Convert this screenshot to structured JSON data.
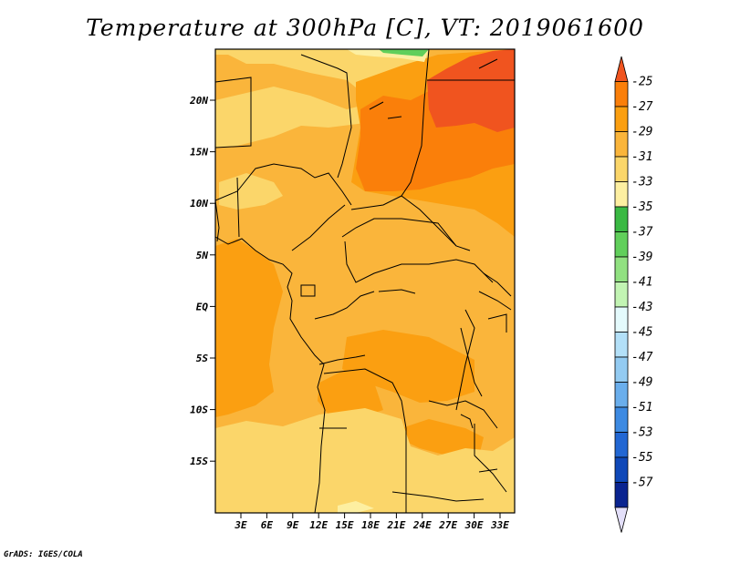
{
  "title": "Temperature at 300hPa [C], VT: 2019061600",
  "credit": "GrADS: IGES/COLA",
  "lat_labels": [
    "20N",
    "15N",
    "10N",
    "5N",
    "EQ",
    "5S",
    "10S",
    "15S"
  ],
  "lon_labels": [
    "3E",
    "6E",
    "9E",
    "12E",
    "15E",
    "18E",
    "21E",
    "24E",
    "27E",
    "30E",
    "33E"
  ],
  "colorbar": {
    "labels": [
      "-25",
      "-27",
      "-29",
      "-31",
      "-33",
      "-35",
      "-37",
      "-39",
      "-41",
      "-43",
      "-45",
      "-47",
      "-49",
      "-51",
      "-53",
      "-55",
      "-57"
    ],
    "colors": [
      "#f0541f",
      "#fa7f0a",
      "#fb9f11",
      "#fab53b",
      "#fbd66a",
      "#fdefa1",
      "#3ab943",
      "#61cf5b",
      "#91e181",
      "#c2f4b3",
      "#e4fafc",
      "#b3e0f8",
      "#93cbf2",
      "#6aaeec",
      "#3d8ae2",
      "#2267d3",
      "#0f48b8",
      "#0a2490",
      "#e3dff9"
    ]
  }
}
